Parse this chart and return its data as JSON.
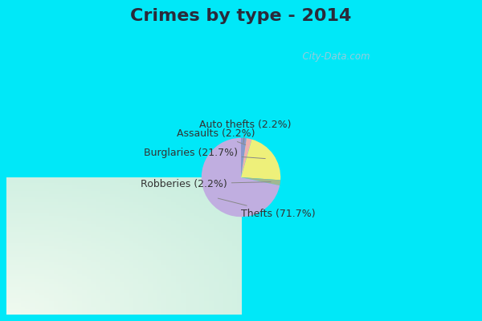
{
  "title": "Crimes by type - 2014",
  "slices": [
    {
      "label": "Thefts (71.7%)",
      "value": 71.7,
      "color": "#c0aee0"
    },
    {
      "label": "Burglaries (21.7%)",
      "value": 21.7,
      "color": "#eef07a"
    },
    {
      "label": "Assaults (2.2%)",
      "value": 2.2,
      "color": "#f0b0b0"
    },
    {
      "label": "Auto thefts (2.2%)",
      "value": 2.2,
      "color": "#8899cc"
    },
    {
      "label": "Robberies (2.2%)",
      "value": 2.2,
      "color": "#a0b890"
    }
  ],
  "border_color": "#00e8f8",
  "bg_center": "#f0f8f0",
  "bg_edge": "#c8eedc",
  "title_fontsize": 16,
  "label_fontsize": 9,
  "watermark": "  City-Data.com",
  "border_width": 8
}
